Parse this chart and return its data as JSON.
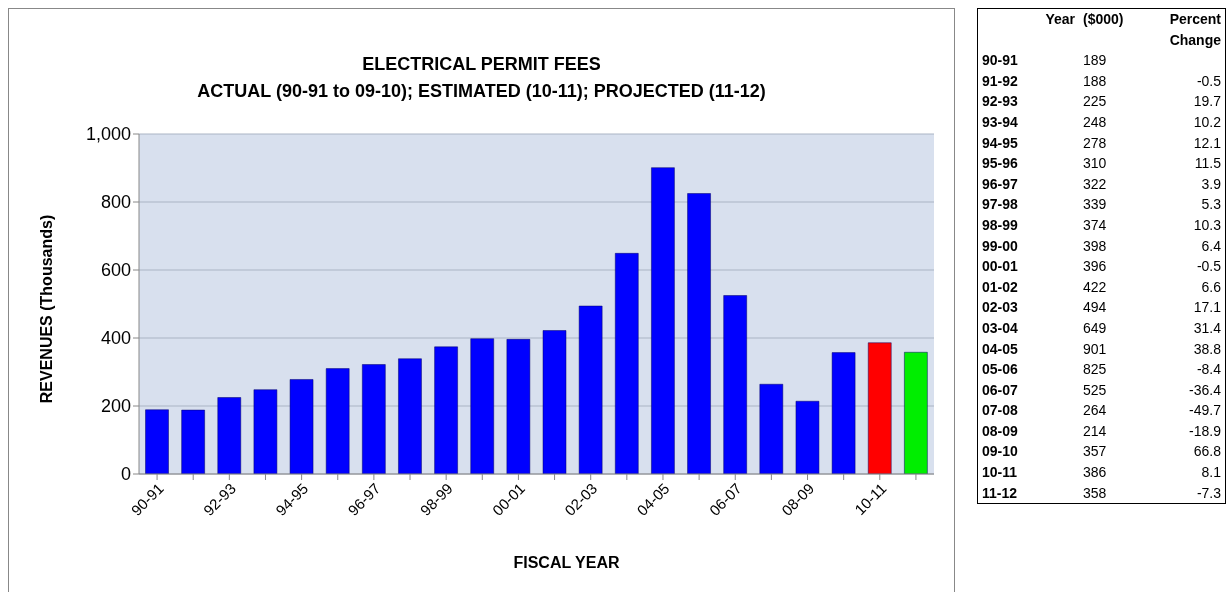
{
  "chart_data": {
    "type": "bar",
    "title": "ELECTRICAL PERMIT FEES",
    "subtitle": "ACTUAL (90-91 to 09-10); ESTIMATED (10-11); PROJECTED (11-12)",
    "xlabel": "FISCAL YEAR",
    "ylabel": "REVENUES (Thousands)",
    "categories": [
      "90-91",
      null,
      "92-93",
      null,
      "94-95",
      null,
      "96-97",
      null,
      "98-99",
      null,
      "00-01",
      null,
      "02-03",
      null,
      "04-05",
      null,
      "06-07",
      null,
      "08-09",
      null,
      "10-11",
      null
    ],
    "values": [
      189,
      188,
      225,
      248,
      278,
      310,
      322,
      339,
      374,
      398,
      396,
      422,
      494,
      649,
      901,
      825,
      525,
      264,
      214,
      357,
      386,
      358
    ],
    "colors": [
      "#0000ff",
      "#0000ff",
      "#0000ff",
      "#0000ff",
      "#0000ff",
      "#0000ff",
      "#0000ff",
      "#0000ff",
      "#0000ff",
      "#0000ff",
      "#0000ff",
      "#0000ff",
      "#0000ff",
      "#0000ff",
      "#0000ff",
      "#0000ff",
      "#0000ff",
      "#0000ff",
      "#0000ff",
      "#0000ff",
      "#ff0000",
      "#00ee00"
    ],
    "annotations": [
      "Year",
      "($000)",
      "Percent Change",
      "90-91",
      "189",
      "91-92",
      "188",
      "-0.5",
      "92-93",
      "225",
      "19.7",
      "93-94",
      "248",
      "10.2",
      "94-95",
      "278",
      "12.1",
      "95-96",
      "310",
      "11.5",
      "96-97",
      "322",
      "3.9",
      "97-98",
      "339",
      "5.3",
      "98-99",
      "374",
      "10.3",
      "99-00",
      "398",
      "6.4",
      "00-01",
      "396",
      "-0.5",
      "01-02",
      "422",
      "6.6",
      "02-03",
      "494",
      "17.1",
      "03-04",
      "649",
      "31.4",
      "04-05",
      "901",
      "38.8",
      "05-06",
      "825",
      "-8.4",
      "06-07",
      "525",
      "-36.4",
      "07-08",
      "264",
      "-49.7",
      "08-09",
      "214",
      "-18.9",
      "09-10",
      "357",
      "66.8",
      "10-11",
      "386",
      "8.1",
      "11-12",
      "358",
      "-7.3"
    ],
    "ylim": [
      0,
      1000
    ],
    "yticks": [
      0,
      200,
      400,
      600,
      800,
      {
        "value": 1000,
        "label": "1,000"
      }
    ],
    "grid": "y"
  }
}
